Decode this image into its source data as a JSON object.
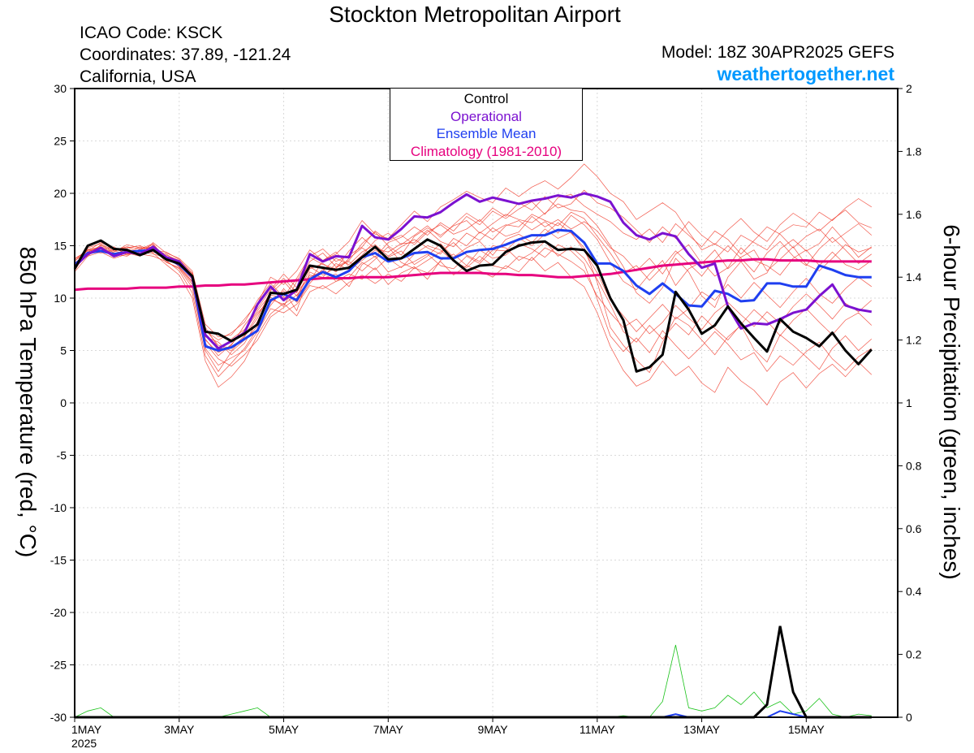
{
  "header": {
    "title": "Stockton Metropolitan Airport",
    "icao": "ICAO Code: KSCK",
    "coords": "Coordinates: 37.89, -121.24",
    "region": "California, USA",
    "model": "Model: 18Z 30APR2025 GEFS",
    "site": "weathertogether.net"
  },
  "colors": {
    "control": "#000000",
    "operational": "#7b11d0",
    "ensemble_mean": "#1f3ff0",
    "climatology": "#e6007e",
    "members": "#f03a2a",
    "precip": "#19c219",
    "site": "#0099ff"
  },
  "chart_data": {
    "type": "line",
    "ylabel": "850 hPa Temperature (red, °C)",
    "y2label": "6-hour Precipitation (green, inches)",
    "xlim": [
      0,
      63
    ],
    "ylim": [
      -30,
      30
    ],
    "y2lim": [
      0,
      2
    ],
    "x_ticks": [
      {
        "x": 0,
        "label": "1MAY",
        "sub": "2025"
      },
      {
        "x": 8,
        "label": "3MAY"
      },
      {
        "x": 16,
        "label": "5MAY"
      },
      {
        "x": 24,
        "label": "7MAY"
      },
      {
        "x": 32,
        "label": "9MAY"
      },
      {
        "x": 40,
        "label": "11MAY"
      },
      {
        "x": 48,
        "label": "13MAY"
      },
      {
        "x": 56,
        "label": "15MAY"
      }
    ],
    "y_ticks": [
      30,
      25,
      20,
      15,
      10,
      5,
      0,
      -5,
      -10,
      -15,
      -20,
      -25,
      -30
    ],
    "y2_ticks": [
      "2",
      "1.8",
      "1.6",
      "1.4",
      "1.2",
      "1",
      "0.8",
      "0.6",
      "0.4",
      "0.2",
      "0"
    ],
    "legend": [
      "Control",
      "Operational",
      "Ensemble Mean",
      "Climatology (1981-2010)"
    ],
    "series": [
      {
        "name": "Control",
        "values": [
          12.8,
          15.0,
          15.5,
          14.7,
          14.6,
          14.1,
          14.6,
          13.7,
          13.3,
          12.1,
          6.8,
          6.6,
          5.9,
          6.6,
          7.5,
          10.5,
          10.4,
          10.8,
          13.1,
          12.9,
          12.7,
          12.9,
          13.9,
          14.9,
          13.7,
          13.8,
          14.7,
          15.6,
          15.0,
          13.6,
          12.6,
          13.1,
          13.2,
          14.4,
          15.0,
          15.3,
          15.4,
          14.6,
          14.7,
          14.6,
          13.1,
          10.0,
          7.9,
          3.0,
          3.4,
          4.6,
          10.6,
          8.9,
          6.6,
          7.4,
          9.2,
          7.6,
          6.2,
          4.9,
          8.0,
          6.8,
          6.2,
          5.4,
          6.7,
          5.0,
          3.7,
          5.1
        ]
      },
      {
        "name": "Operational",
        "values": [
          13.0,
          14.2,
          14.8,
          14.0,
          14.4,
          14.2,
          14.9,
          13.9,
          13.5,
          12.0,
          6.5,
          5.2,
          5.9,
          6.7,
          9.4,
          11.1,
          9.8,
          10.8,
          14.2,
          13.5,
          14.0,
          13.9,
          16.9,
          15.8,
          15.6,
          16.6,
          17.8,
          17.7,
          18.2,
          19.1,
          19.9,
          19.2,
          19.6,
          19.3,
          19.0,
          19.3,
          19.5,
          19.8,
          19.6,
          20.0,
          19.7,
          19.2,
          17.2,
          16.0,
          15.6,
          16.2,
          15.9,
          14.2,
          12.9,
          13.3,
          9.2,
          7.1,
          7.6,
          7.5,
          8.0,
          8.6,
          8.9,
          10.2,
          11.3,
          9.3,
          8.9,
          8.7
        ]
      },
      {
        "name": "Ensemble Mean",
        "values": [
          13.2,
          14.3,
          14.5,
          14.2,
          14.4,
          14.5,
          14.6,
          13.8,
          13.2,
          12.0,
          5.4,
          5.0,
          5.3,
          6.1,
          6.9,
          9.8,
          10.4,
          9.8,
          11.8,
          12.5,
          12.0,
          12.6,
          13.9,
          14.3,
          13.5,
          13.8,
          14.3,
          14.4,
          13.8,
          13.8,
          14.4,
          14.6,
          14.7,
          15.1,
          15.6,
          16.0,
          16.0,
          16.5,
          16.4,
          15.3,
          13.3,
          13.3,
          12.6,
          11.2,
          10.4,
          11.4,
          10.4,
          9.3,
          9.2,
          10.7,
          10.4,
          9.7,
          9.8,
          11.4,
          11.4,
          11.1,
          11.1,
          13.1,
          12.7,
          12.2,
          12.0,
          12.0
        ]
      },
      {
        "name": "Climatology (1981-2010)",
        "values": [
          10.8,
          10.9,
          10.9,
          10.9,
          10.9,
          11.0,
          11.0,
          11.0,
          11.1,
          11.1,
          11.2,
          11.2,
          11.3,
          11.3,
          11.4,
          11.5,
          11.6,
          11.7,
          11.8,
          11.9,
          11.9,
          11.9,
          12.0,
          12.0,
          12.0,
          12.1,
          12.2,
          12.3,
          12.4,
          12.4,
          12.4,
          12.4,
          12.3,
          12.3,
          12.2,
          12.2,
          12.1,
          12.0,
          12.0,
          12.1,
          12.2,
          12.3,
          12.5,
          12.7,
          12.9,
          13.1,
          13.2,
          13.3,
          13.4,
          13.5,
          13.6,
          13.6,
          13.7,
          13.7,
          13.6,
          13.6,
          13.6,
          13.5,
          13.5,
          13.5,
          13.5,
          13.5
        ]
      }
    ],
    "members": [
      [
        13.5,
        14.8,
        15.2,
        14.5,
        14.9,
        14.3,
        15.0,
        14.0,
        13.0,
        11.5,
        6.0,
        4.8,
        5.5,
        7.4,
        9.0,
        10.8,
        12.3,
        11.0,
        13.5,
        14.3,
        13.0,
        13.6,
        15.2,
        16.3,
        15.0,
        14.1,
        15.9,
        16.7,
        16.0,
        16.9,
        17.4,
        16.2,
        17.1,
        18.0,
        17.5,
        17.2,
        18.1,
        19.0,
        18.4,
        18.2,
        16.9,
        15.0,
        13.0,
        10.5,
        9.5,
        11.0,
        13.8,
        12.5,
        10.2,
        9.1,
        12.0,
        13.5,
        11.8,
        12.4,
        14.7,
        15.6,
        14.5,
        15.2,
        16.8,
        15.4,
        13.9,
        14.9
      ],
      [
        12.9,
        14.2,
        14.9,
        14.2,
        14.0,
        14.7,
        14.9,
        13.6,
        12.6,
        10.5,
        4.5,
        2.5,
        3.8,
        5.2,
        7.1,
        9.6,
        10.7,
        8.8,
        12.5,
        11.9,
        12.3,
        11.1,
        13.2,
        14.0,
        12.5,
        13.0,
        13.5,
        14.2,
        13.1,
        12.8,
        14.0,
        13.3,
        14.6,
        14.5,
        15.7,
        15.0,
        16.1,
        17.2,
        16.2,
        14.8,
        11.5,
        7.2,
        5.5,
        4.1,
        2.9,
        5.8,
        8.2,
        7.4,
        6.0,
        4.6,
        6.3,
        7.4,
        5.1,
        3.9,
        6.5,
        5.5,
        4.4,
        3.2,
        5.2,
        6.4,
        5.0,
        6.1
      ],
      [
        13.8,
        14.5,
        15.3,
        14.8,
        14.5,
        14.1,
        15.3,
        14.3,
        13.8,
        12.6,
        7.5,
        6.3,
        6.5,
        8.0,
        9.5,
        12.0,
        11.3,
        12.6,
        14.6,
        13.6,
        14.2,
        15.4,
        17.4,
        16.1,
        15.7,
        17.0,
        18.3,
        17.3,
        18.7,
        19.4,
        20.2,
        19.6,
        19.1,
        20.5,
        19.7,
        20.6,
        21.2,
        20.4,
        21.5,
        22.8,
        21.6,
        20.0,
        19.2,
        17.5,
        18.3,
        19.1,
        18.2,
        16.3,
        14.6,
        15.2,
        14.4,
        16.0,
        15.3,
        14.6,
        16.2,
        17.0,
        16.8,
        18.2,
        17.4,
        18.6,
        19.5,
        18.7
      ],
      [
        12.5,
        14.0,
        14.4,
        13.8,
        14.2,
        14.9,
        14.3,
        13.2,
        12.2,
        10.0,
        4.0,
        1.5,
        2.5,
        4.0,
        6.5,
        8.5,
        9.5,
        8.3,
        10.6,
        11.2,
        10.4,
        11.5,
        12.2,
        11.4,
        12.3,
        11.6,
        12.9,
        12.4,
        13.5,
        12.2,
        13.1,
        12.6,
        12.0,
        13.1,
        12.5,
        13.9,
        12.6,
        13.4,
        12.0,
        11.1,
        8.6,
        5.4,
        3.1,
        1.6,
        2.2,
        4.0,
        2.6,
        3.5,
        1.9,
        1.0,
        3.4,
        2.1,
        1.2,
        -0.2,
        2.0,
        2.9,
        1.4,
        2.8,
        3.7,
        2.5,
        3.9,
        2.7
      ],
      [
        13.1,
        14.6,
        14.7,
        14.4,
        15.1,
        14.8,
        14.7,
        14.2,
        13.4,
        12.0,
        6.3,
        5.8,
        4.6,
        5.7,
        7.8,
        10.3,
        10.0,
        10.6,
        12.0,
        12.6,
        13.8,
        13.2,
        14.4,
        15.1,
        14.0,
        14.9,
        15.6,
        14.8,
        14.2,
        15.7,
        15.0,
        16.3,
        15.6,
        16.9,
        17.4,
        16.5,
        17.3,
        16.2,
        17.9,
        17.0,
        15.6,
        13.4,
        11.6,
        10.8,
        12.3,
        13.6,
        11.2,
        12.8,
        13.5,
        12.1,
        12.9,
        14.8,
        13.6,
        13.1,
        12.2,
        13.8,
        14.6,
        13.1,
        14.4,
        13.2,
        12.7,
        13.6
      ],
      [
        13.4,
        14.1,
        14.6,
        14.0,
        14.6,
        14.4,
        14.2,
        13.9,
        13.1,
        11.8,
        5.2,
        3.6,
        4.3,
        5.0,
        6.8,
        9.0,
        8.6,
        9.4,
        11.2,
        10.9,
        11.6,
        12.3,
        11.8,
        12.9,
        11.3,
        12.4,
        13.0,
        11.8,
        13.6,
        14.2,
        13.1,
        14.6,
        13.8,
        14.1,
        15.2,
        14.7,
        13.9,
        15.1,
        14.5,
        13.3,
        9.9,
        6.4,
        4.9,
        6.2,
        4.8,
        6.9,
        5.5,
        4.2,
        5.4,
        6.8,
        5.6,
        4.1,
        4.8,
        3.0,
        4.5,
        3.6,
        4.9,
        5.8,
        4.2,
        3.1,
        4.4,
        5.2
      ],
      [
        12.7,
        14.4,
        15.0,
        14.7,
        14.3,
        14.0,
        14.8,
        13.4,
        12.9,
        11.3,
        5.7,
        4.2,
        3.5,
        4.6,
        6.0,
        8.2,
        9.1,
        10.0,
        12.8,
        13.3,
        12.5,
        13.8,
        14.8,
        13.9,
        15.3,
        15.8,
        16.8,
        16.0,
        17.2,
        16.4,
        17.8,
        17.0,
        18.3,
        17.6,
        18.5,
        19.2,
        18.0,
        19.6,
        19.9,
        18.8,
        18.0,
        17.3,
        16.2,
        15.6,
        16.6,
        15.3,
        17.1,
        16.0,
        14.9,
        16.4,
        15.6,
        14.2,
        15.5,
        16.8,
        16.1,
        14.8,
        15.9,
        16.6,
        15.3,
        16.2,
        17.1,
        16.0
      ],
      [
        13.0,
        14.9,
        15.4,
        14.6,
        14.8,
        15.0,
        14.5,
        14.1,
        13.6,
        12.3,
        7.0,
        5.5,
        5.2,
        6.4,
        8.4,
        10.1,
        9.2,
        11.6,
        13.9,
        13.2,
        12.8,
        14.5,
        15.8,
        14.7,
        14.4,
        15.2,
        15.3,
        16.5,
        15.4,
        14.9,
        16.2,
        15.5,
        16.7,
        15.9,
        16.3,
        17.8,
        16.8,
        17.5,
        16.6,
        17.3,
        16.4,
        14.8,
        14.0,
        12.6,
        13.8,
        12.3,
        14.2,
        15.1,
        13.3,
        14.6,
        12.8,
        13.9,
        14.6,
        12.6,
        13.7,
        14.9,
        13.2,
        12.6,
        13.8,
        15.1,
        14.4,
        14.8
      ],
      [
        13.6,
        14.3,
        14.5,
        14.9,
        14.1,
        14.6,
        15.1,
        13.8,
        13.2,
        11.9,
        6.6,
        5.0,
        6.1,
        7.0,
        8.8,
        10.4,
        11.6,
        10.2,
        12.2,
        12.0,
        13.3,
        12.7,
        13.6,
        14.6,
        13.8,
        12.9,
        14.2,
        15.0,
        14.6,
        13.5,
        12.9,
        14.0,
        13.1,
        12.8,
        14.0,
        13.6,
        14.8,
        14.2,
        13.5,
        12.6,
        10.2,
        8.6,
        7.2,
        8.0,
        6.6,
        7.7,
        9.3,
        8.1,
        7.0,
        8.6,
        9.6,
        8.4,
        7.3,
        8.7,
        7.6,
        9.2,
        10.4,
        9.3,
        8.0,
        9.5,
        8.7,
        9.8
      ],
      [
        12.6,
        14.7,
        14.8,
        14.1,
        14.7,
        14.2,
        14.0,
        13.5,
        12.8,
        11.0,
        5.0,
        3.0,
        4.9,
        6.0,
        7.3,
        9.3,
        10.9,
        9.6,
        11.4,
        12.8,
        11.6,
        12.0,
        13.4,
        12.7,
        13.9,
        14.5,
        13.2,
        14.0,
        15.2,
        13.9,
        14.8,
        15.4,
        14.1,
        15.6,
        16.1,
        15.3,
        16.6,
        15.7,
        16.3,
        14.5,
        12.4,
        9.8,
        8.3,
        6.8,
        8.1,
        9.4,
        8.0,
        9.0,
        10.6,
        9.8,
        11.3,
        10.0,
        11.5,
        10.3,
        9.1,
        10.6,
        11.9,
        10.4,
        9.5,
        10.9,
        12.0,
        11.1
      ],
      [
        13.3,
        14.0,
        15.1,
        14.3,
        14.4,
        14.5,
        14.6,
        14.4,
        13.7,
        12.4,
        6.9,
        6.0,
        6.7,
        7.7,
        9.8,
        11.4,
        10.1,
        11.9,
        14.0,
        14.7,
        13.5,
        14.1,
        14.9,
        16.4,
        15.5,
        16.0,
        15.1,
        16.3,
        17.0,
        16.1,
        16.6,
        17.5,
        16.3,
        17.0,
        16.8,
        18.0,
        17.4,
        16.9,
        18.2,
        17.6,
        15.9,
        14.3,
        12.4,
        13.1,
        11.7,
        13.0,
        14.5,
        13.3,
        12.1,
        13.7,
        15.0,
        13.8,
        12.5,
        14.3,
        15.4,
        14.0,
        13.1,
        14.7,
        15.8,
        14.6,
        13.3,
        14.2
      ],
      [
        13.7,
        14.6,
        14.3,
        14.6,
        14.9,
        14.7,
        15.2,
        13.7,
        13.5,
        12.2,
        7.2,
        5.3,
        5.0,
        6.3,
        8.1,
        10.7,
        11.9,
        10.5,
        13.0,
        12.2,
        12.9,
        13.5,
        12.6,
        13.7,
        14.9,
        13.4,
        12.8,
        13.6,
        14.4,
        15.3,
        14.1,
        13.5,
        15.0,
        14.8,
        13.6,
        14.3,
        15.4,
        14.0,
        14.9,
        13.8,
        11.8,
        9.4,
        6.8,
        5.8,
        7.4,
        6.1,
        7.6,
        6.5,
        8.3,
        7.1,
        6.0,
        7.5,
        8.9,
        7.8,
        6.4,
        7.9,
        9.0,
        7.7,
        6.5,
        7.9,
        8.6,
        7.4
      ],
      [
        12.8,
        14.4,
        14.9,
        14.5,
        14.2,
        14.3,
        14.4,
        14.0,
        13.0,
        11.6,
        6.1,
        4.5,
        5.6,
        6.9,
        8.6,
        9.9,
        9.4,
        10.3,
        11.6,
        13.6,
        14.4,
        13.0,
        14.1,
        15.5,
        16.2,
        15.1,
        16.0,
        16.9,
        15.8,
        17.0,
        18.1,
        17.3,
        18.6,
        17.8,
        19.1,
        18.4,
        19.7,
        18.6,
        19.0,
        20.3,
        19.1,
        18.6,
        17.7,
        16.5,
        15.3,
        16.8,
        15.7,
        17.3,
        16.0,
        15.1,
        16.5,
        17.6,
        16.3,
        15.4,
        17.0,
        18.1,
        17.3,
        16.4,
        17.5,
        18.4,
        17.2,
        16.7
      ]
    ],
    "precip": {
      "control": [
        0,
        0,
        0,
        0,
        0,
        0,
        0,
        0,
        0,
        0,
        0,
        0,
        0,
        0,
        0,
        0,
        0,
        0,
        0,
        0,
        0,
        0,
        0,
        0,
        0,
        0,
        0,
        0,
        0,
        0,
        0,
        0,
        0,
        0,
        0,
        0,
        0,
        0,
        0,
        0,
        0,
        0,
        0,
        0,
        0,
        0,
        0,
        0,
        0,
        0,
        0,
        0,
        0,
        0.04,
        0.29,
        0.08,
        0,
        0,
        0,
        0,
        0,
        0
      ],
      "ensemble_mean": [
        0,
        0,
        0,
        0,
        0,
        0,
        0,
        0,
        0,
        0,
        0,
        0,
        0,
        0,
        0,
        0,
        0,
        0,
        0,
        0,
        0,
        0,
        0,
        0,
        0,
        0,
        0,
        0,
        0,
        0,
        0,
        0,
        0,
        0,
        0,
        0,
        0,
        0,
        0,
        0,
        0,
        0,
        0,
        0,
        0,
        0,
        0.01,
        0,
        0,
        0,
        0,
        0,
        0,
        0,
        0.02,
        0.01,
        0,
        0,
        0,
        0,
        0,
        0
      ],
      "member_max": [
        0,
        0.02,
        0.03,
        0,
        0,
        0,
        0,
        0,
        0,
        0,
        0,
        0,
        0.01,
        0.02,
        0.03,
        0,
        0,
        0,
        0,
        0,
        0,
        0,
        0,
        0,
        0,
        0,
        0,
        0,
        0,
        0,
        0,
        0,
        0,
        0,
        0,
        0,
        0,
        0,
        0,
        0,
        0,
        0,
        0.005,
        0,
        0,
        0.05,
        0.23,
        0.03,
        0.02,
        0.03,
        0.07,
        0.04,
        0.08,
        0.03,
        0.05,
        0.01,
        0.02,
        0.06,
        0.01,
        0,
        0.01,
        0.005
      ]
    }
  }
}
